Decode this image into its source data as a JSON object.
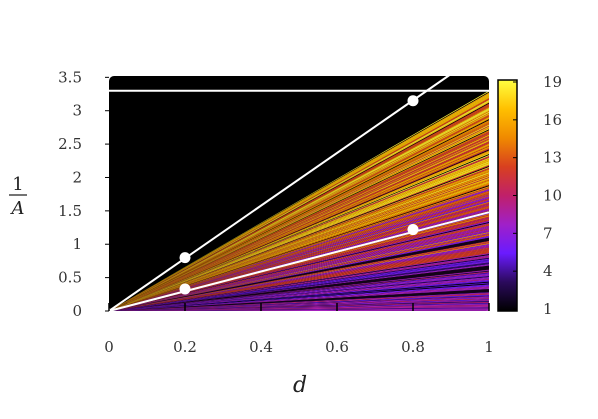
{
  "chart_data": {
    "type": "heatmap",
    "title": "",
    "xlabel": "d",
    "ylabel": {
      "numerator": "1",
      "denominator": "A"
    },
    "xlim": [
      0,
      1
    ],
    "ylim": [
      0,
      3.5
    ],
    "x_ticks": [
      "0",
      "0.2",
      "0.4",
      "0.6",
      "0.8",
      "1"
    ],
    "y_ticks": [
      "0",
      "0.5",
      "1",
      "1.5",
      "2",
      "2.5",
      "3",
      "3.5"
    ],
    "colorbar": {
      "range": [
        1,
        19
      ],
      "ticks": [
        "1",
        "4",
        "7",
        "10",
        "13",
        "16",
        "19"
      ],
      "colors": [
        "#000000",
        "#2b0a5c",
        "#6a1bff",
        "#a020c8",
        "#c0206a",
        "#d8401f",
        "#f08a00",
        "#ffc000",
        "#ffff40"
      ]
    },
    "background_color": "#000000",
    "lines": [
      {
        "x": [
          0,
          0.9
        ],
        "y": [
          0,
          3.55
        ],
        "color": "#ffffff"
      },
      {
        "x": [
          0,
          1
        ],
        "y": [
          3.3,
          3.3
        ],
        "color": "#ffffff"
      },
      {
        "x": [
          0,
          1
        ],
        "y": [
          0,
          1.48
        ],
        "color": "#ffffff"
      }
    ],
    "points": [
      {
        "x": 0.2,
        "y": 0.8
      },
      {
        "x": 0.8,
        "y": 3.15
      },
      {
        "x": 0.2,
        "y": 0.33
      },
      {
        "x": 0.8,
        "y": 1.22
      }
    ]
  }
}
